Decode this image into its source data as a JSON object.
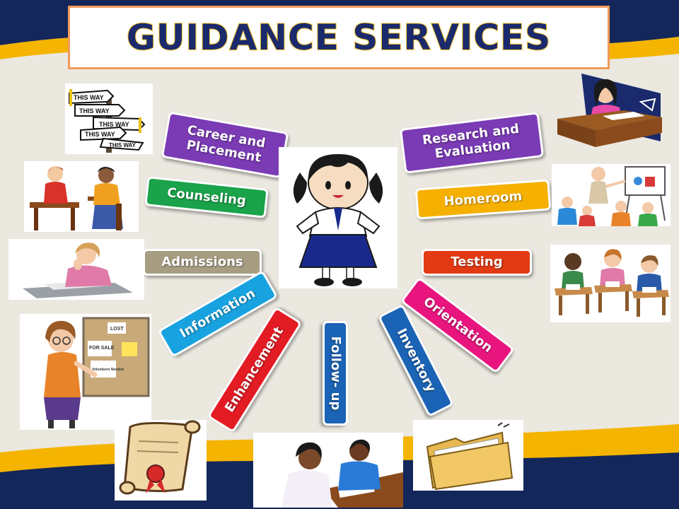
{
  "title": "GUIDANCE SERVICES",
  "colors": {
    "title_text": "#1a2a6c",
    "title_outline": "#f7c22a",
    "title_border": "#f09a5a",
    "navy": "#14275a",
    "gold": "#f5b400",
    "background": "#ebe8e0"
  },
  "services": [
    {
      "label": "Career and Placement",
      "color": "#7b3bb5"
    },
    {
      "label": "Research and Evaluation",
      "color": "#7b3bb5"
    },
    {
      "label": "Counseling",
      "color": "#1aa34a"
    },
    {
      "label": "Homeroom",
      "color": "#f6b000"
    },
    {
      "label": "Admissions",
      "color": "#a69d82"
    },
    {
      "label": "Testing",
      "color": "#e23a12"
    },
    {
      "label": "Information",
      "color": "#18a3e0"
    },
    {
      "label": "Orientation",
      "color": "#e8157f"
    },
    {
      "label": "Enhancement",
      "color": "#e31b23"
    },
    {
      "label": "Follow- up",
      "color": "#1b63b5"
    },
    {
      "label": "Inventory",
      "color": "#1b63b5"
    }
  ],
  "illustration_lettering": [
    "THIS WAY",
    "THIS WAY",
    "THIS WAY",
    "THIS WAY",
    "THIS WAY",
    "LOST",
    "FOR SALE",
    "Volunteers Needed"
  ],
  "icons": [
    "signpost-icon",
    "counseling-pair-icon",
    "thinking-woman-icon",
    "bulletin-board-woman-icon",
    "diploma-scroll-icon",
    "tutoring-icon",
    "folder-icon",
    "students-testing-icon",
    "classroom-icon",
    "woman-at-desk-icon",
    "schoolgirl-icon"
  ]
}
